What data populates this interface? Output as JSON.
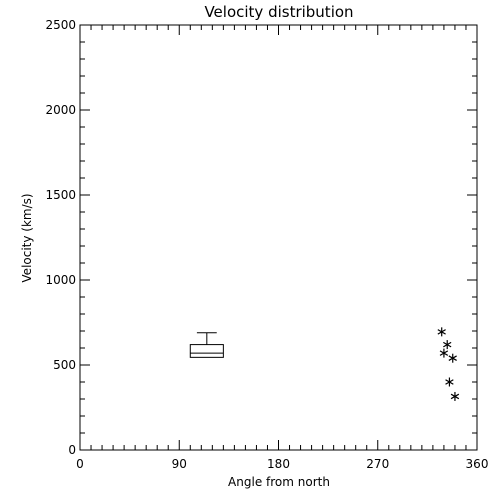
{
  "chart_data": {
    "type": "box-scatter",
    "title": "Velocity distribution",
    "xlabel": "Angle from north",
    "ylabel": "Velocity (km/s)",
    "xlim": [
      0,
      360
    ],
    "ylim": [
      0,
      2500
    ],
    "x_ticks": [
      0,
      90,
      180,
      270,
      360
    ],
    "y_ticks": [
      0,
      500,
      1000,
      1500,
      2000,
      2500
    ],
    "x_minor_step": 10,
    "y_minor_step": 100,
    "grid": false,
    "box": {
      "x": 115,
      "half_width": 15,
      "q1": 545,
      "median": 570,
      "q3": 620,
      "whisker_high": 690
    },
    "points": [
      {
        "x": 328,
        "y": 695
      },
      {
        "x": 333,
        "y": 620
      },
      {
        "x": 330,
        "y": 570
      },
      {
        "x": 338,
        "y": 540
      },
      {
        "x": 335,
        "y": 400
      },
      {
        "x": 340,
        "y": 315
      }
    ],
    "colors": {
      "axis": "#000000",
      "background": "#ffffff"
    }
  }
}
